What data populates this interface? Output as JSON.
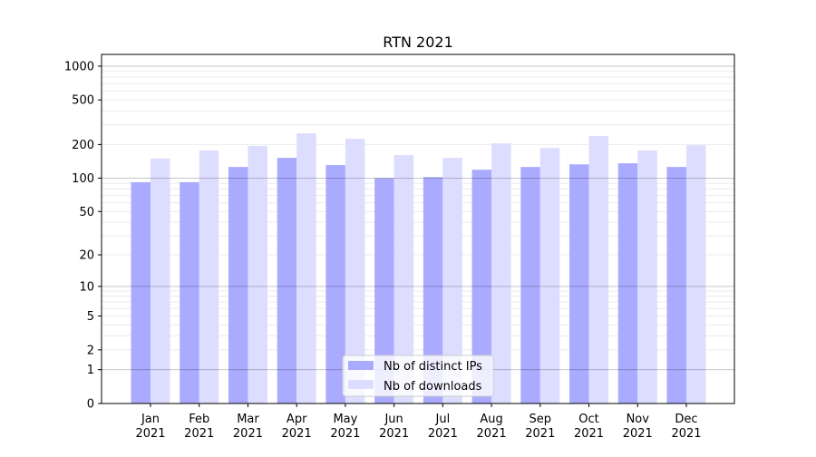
{
  "chart_data": {
    "type": "bar",
    "title": "RTN 2021",
    "xlabel": "",
    "ylabel": "",
    "yscale": "log10(1+y)",
    "ylim": [
      0,
      1200
    ],
    "grid": true,
    "legend_position": "bottom-center",
    "categories": [
      "Jan\n2021",
      "Feb\n2021",
      "Mar\n2021",
      "Apr\n2021",
      "May\n2021",
      "Jun\n2021",
      "Jul\n2021",
      "Aug\n2021",
      "Sep\n2021",
      "Oct\n2021",
      "Nov\n2021",
      "Dec\n2021"
    ],
    "yticks": [
      0,
      1,
      2,
      5,
      10,
      20,
      50,
      100,
      200,
      500,
      1000
    ],
    "ytick_labels": [
      "0",
      "1",
      "2",
      "5",
      "10",
      "20",
      "50",
      "100",
      "200",
      "500",
      "1000"
    ],
    "series": [
      {
        "name": "Nb of distinct IPs",
        "color": "#aaaaff",
        "values": [
          92,
          92,
          126,
          152,
          131,
          100,
          102,
          119,
          126,
          133,
          136,
          126
        ]
      },
      {
        "name": "Nb of downloads",
        "color": "#ddddff",
        "values": [
          150,
          177,
          194,
          252,
          225,
          161,
          152,
          205,
          186,
          238,
          177,
          197
        ]
      }
    ]
  }
}
